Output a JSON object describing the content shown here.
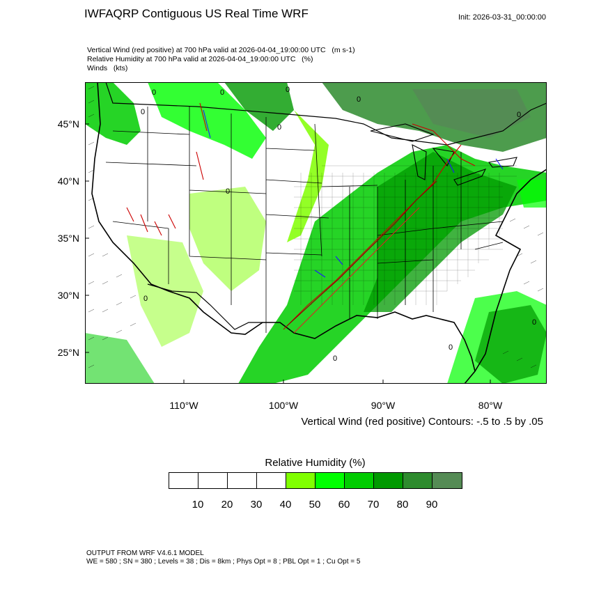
{
  "title": "IWFAQRP Contiguous US Real Time WRF",
  "init_label": "Init: 2026-03-31_00:00:00",
  "subtitles": {
    "line1": "Vertical Wind (red positive) at 700 hPa valid at 2026-04-04_19:00:00 UTC   (m s-1)",
    "line2": "Relative Humidity at 700 hPa valid at 2026-04-04_19:00:00 UTC   (%)",
    "line3": "Winds   (kts)"
  },
  "lat_labels": [
    "45°N",
    "40°N",
    "35°N",
    "30°N",
    "25°N"
  ],
  "lon_labels": [
    "110°W",
    "100°W",
    "90°W",
    "80°W"
  ],
  "contour_note": "Vertical Wind (red positive) Contours: -.5 to .5 by .05",
  "colorbar": {
    "title": "Relative Humidity  (%)",
    "labels": [
      "10",
      "20",
      "30",
      "40",
      "50",
      "60",
      "70",
      "80",
      "90"
    ],
    "colors": [
      "#ffffff",
      "#ffffff",
      "#ffffff",
      "#ffffff",
      "#80ff00",
      "#00ff00",
      "#00cc00",
      "#009900",
      "#2e8b2e",
      "#558b55"
    ]
  },
  "contour_zero_label": "0",
  "footer": {
    "line1": "OUTPUT FROM WRF V4.6.1 MODEL",
    "line2": "WE = 580 ; SN = 380 ; Levels = 38 ; Dis = 8km ; Phys Opt = 8 ; PBL Opt = 1 ; Cu Opt = 5"
  }
}
